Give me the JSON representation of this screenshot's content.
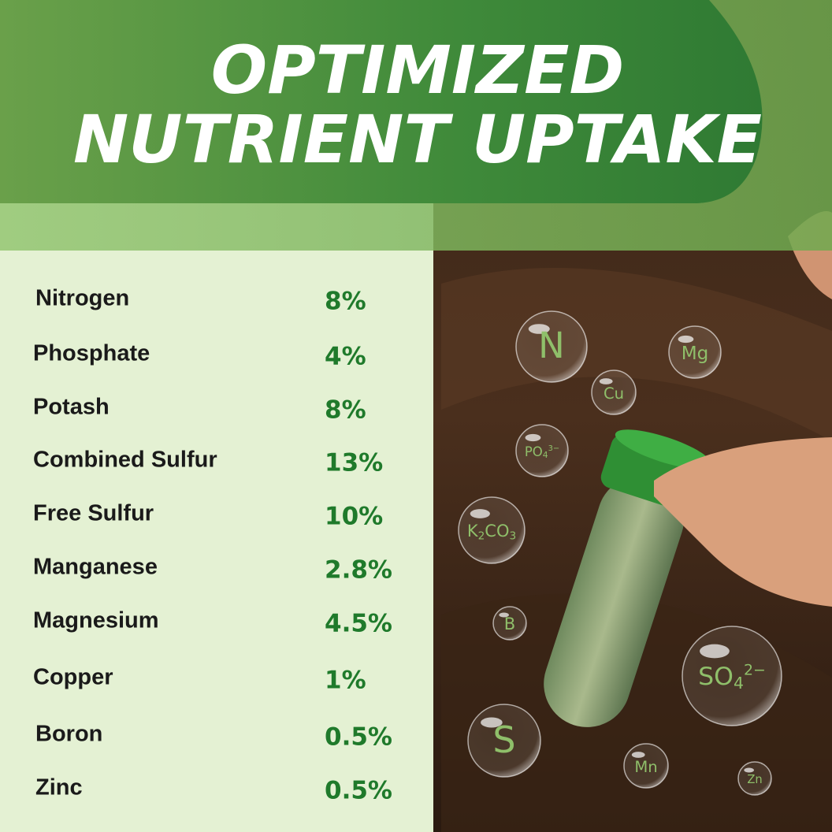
{
  "header": {
    "title_lines": [
      "OPTIMIZED",
      "NUTRIENT UPTAKE"
    ]
  },
  "nutrients": [
    {
      "name": "Nitrogen",
      "amount": "8%"
    },
    {
      "name": "Phosphate",
      "amount": "4%"
    },
    {
      "name": "Potash",
      "amount": "8%"
    },
    {
      "name": "Combined Sulfur",
      "amount": "13%"
    },
    {
      "name": "Free Sulfur",
      "amount": "10%"
    },
    {
      "name": "Manganese",
      "amount": "2.8%"
    },
    {
      "name": "Magnesium",
      "amount": "4.5%"
    },
    {
      "name": "Copper",
      "amount": "1%"
    },
    {
      "name": "Boron",
      "amount": "0.5%"
    },
    {
      "name": "Zinc",
      "amount": "0.5%"
    }
  ],
  "bubbles": [
    {
      "segments": [
        {
          "text": "N"
        }
      ]
    },
    {
      "segments": [
        {
          "text": "Mg"
        }
      ]
    },
    {
      "segments": [
        {
          "text": "Cu"
        }
      ]
    },
    {
      "segments": [
        {
          "text": "PO"
        },
        {
          "sub": "4"
        },
        {
          "sup": "3−"
        }
      ]
    },
    {
      "segments": [
        {
          "text": "K"
        },
        {
          "sub": "2"
        },
        {
          "text": "CO"
        },
        {
          "sub": "3"
        }
      ]
    },
    {
      "segments": [
        {
          "text": "B"
        }
      ]
    },
    {
      "segments": [
        {
          "text": "SO"
        },
        {
          "sub": "4"
        },
        {
          "sup": "2−"
        }
      ]
    },
    {
      "segments": [
        {
          "text": "S"
        }
      ]
    },
    {
      "segments": [
        {
          "text": "Mn"
        }
      ]
    },
    {
      "segments": [
        {
          "text": "Zn"
        }
      ]
    }
  ]
}
